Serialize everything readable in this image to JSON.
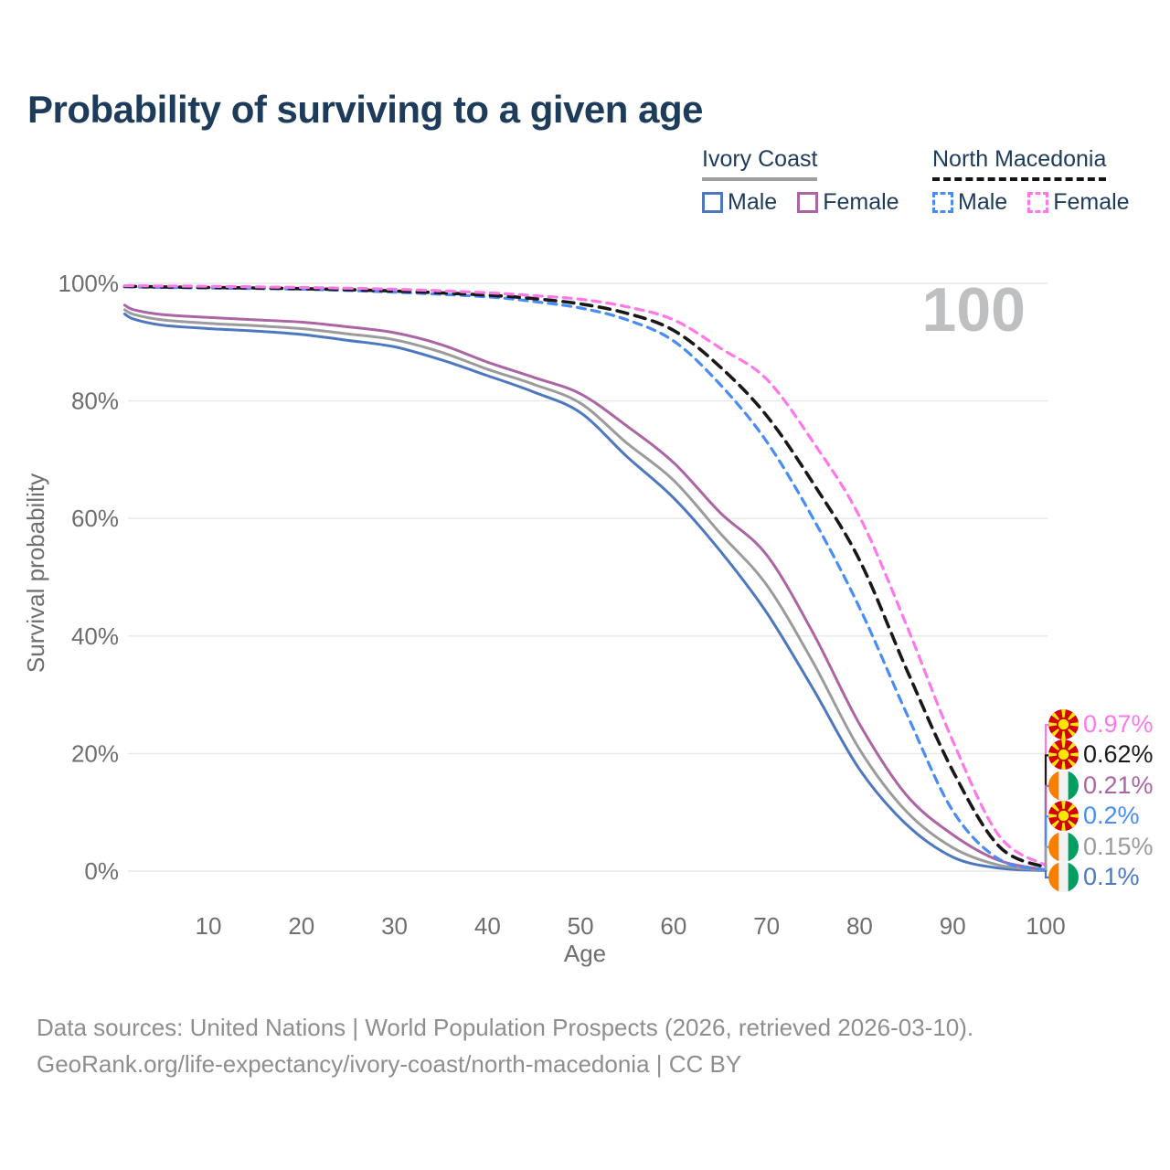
{
  "title": "Probability of surviving to a given age",
  "watermark": "100",
  "legend": {
    "groups": [
      {
        "name": "Ivory Coast",
        "underline_style": "solid",
        "underline_color": "#9e9e9e",
        "items": [
          {
            "label": "Male",
            "color": "#4d78c0",
            "dashed": false
          },
          {
            "label": "Female",
            "color": "#ab64a4",
            "dashed": false
          }
        ]
      },
      {
        "name": "North Macedonia",
        "underline_style": "dashed",
        "underline_color": "#151515",
        "items": [
          {
            "label": "Male",
            "color": "#4a8cf5",
            "dashed": true
          },
          {
            "label": "Female",
            "color": "#ff78e8",
            "dashed": true
          }
        ]
      }
    ]
  },
  "chart_data": {
    "type": "line",
    "title": "Probability of surviving to a given age",
    "xlabel": "Age",
    "ylabel": "Survival probability",
    "xlim": [
      1,
      100
    ],
    "ylim": [
      0,
      100
    ],
    "grid": "horizontal-only",
    "grid_color": "#e7e7e7",
    "tick_color": "#6e6e6e",
    "x_ticks": [
      10,
      20,
      30,
      40,
      50,
      60,
      70,
      80,
      90,
      100
    ],
    "y_ticks": [
      {
        "label": "0%",
        "value": 0
      },
      {
        "label": "20%",
        "value": 20
      },
      {
        "label": "40%",
        "value": 40
      },
      {
        "label": "60%",
        "value": 60
      },
      {
        "label": "80%",
        "value": 80
      },
      {
        "label": "100%",
        "value": 100
      }
    ],
    "age_counter": "100",
    "series": [
      {
        "id": "ivory-coast-male",
        "name": "Ivory Coast Male",
        "color": "#4d78c0",
        "style": "solid",
        "end_value": "0.1%",
        "points": [
          [
            1,
            94.8
          ],
          [
            2,
            93.9
          ],
          [
            5,
            92.9
          ],
          [
            10,
            92.3
          ],
          [
            15,
            91.9
          ],
          [
            20,
            91.3
          ],
          [
            25,
            90.3
          ],
          [
            30,
            89.2
          ],
          [
            35,
            87.0
          ],
          [
            40,
            84.3
          ],
          [
            45,
            81.5
          ],
          [
            50,
            78.0
          ],
          [
            55,
            70.5
          ],
          [
            60,
            63.5
          ],
          [
            65,
            54.5
          ],
          [
            70,
            44.0
          ],
          [
            75,
            31.0
          ],
          [
            80,
            17.3
          ],
          [
            85,
            8.0
          ],
          [
            90,
            2.4
          ],
          [
            95,
            0.5
          ],
          [
            100,
            0.1
          ]
        ]
      },
      {
        "id": "ivory-coast-all",
        "name": "Ivory Coast (both sexes)",
        "color": "#9b9b9b",
        "style": "solid",
        "end_value": "0.15%",
        "points": [
          [
            1,
            95.5
          ],
          [
            2,
            94.7
          ],
          [
            5,
            93.8
          ],
          [
            10,
            93.2
          ],
          [
            15,
            92.8
          ],
          [
            20,
            92.3
          ],
          [
            25,
            91.4
          ],
          [
            30,
            90.4
          ],
          [
            35,
            88.3
          ],
          [
            40,
            85.4
          ],
          [
            45,
            82.8
          ],
          [
            50,
            79.6
          ],
          [
            55,
            72.8
          ],
          [
            60,
            66.5
          ],
          [
            65,
            57.5
          ],
          [
            70,
            48.7
          ],
          [
            75,
            35.5
          ],
          [
            80,
            20.7
          ],
          [
            85,
            10.2
          ],
          [
            90,
            4.0
          ],
          [
            95,
            1.0
          ],
          [
            100,
            0.15
          ]
        ]
      },
      {
        "id": "ivory-coast-female",
        "name": "Ivory Coast Female",
        "color": "#ab64a4",
        "style": "solid",
        "end_value": "0.21%",
        "points": [
          [
            1,
            96.3
          ],
          [
            2,
            95.5
          ],
          [
            5,
            94.7
          ],
          [
            10,
            94.2
          ],
          [
            15,
            93.8
          ],
          [
            20,
            93.4
          ],
          [
            25,
            92.6
          ],
          [
            30,
            91.6
          ],
          [
            35,
            89.6
          ],
          [
            40,
            86.6
          ],
          [
            45,
            84.0
          ],
          [
            50,
            81.2
          ],
          [
            55,
            75.7
          ],
          [
            60,
            69.5
          ],
          [
            65,
            61.0
          ],
          [
            70,
            53.8
          ],
          [
            75,
            40.5
          ],
          [
            80,
            25.0
          ],
          [
            85,
            13.0
          ],
          [
            90,
            6.2
          ],
          [
            95,
            1.8
          ],
          [
            100,
            0.21
          ]
        ]
      },
      {
        "id": "north-macedonia-male",
        "name": "North Macedonia Male",
        "color": "#4a8cf5",
        "style": "dashed",
        "end_value": "0.2%",
        "points": [
          [
            1,
            99.4
          ],
          [
            5,
            99.3
          ],
          [
            10,
            99.2
          ],
          [
            20,
            99.0
          ],
          [
            30,
            98.5
          ],
          [
            40,
            97.7
          ],
          [
            45,
            96.9
          ],
          [
            50,
            95.8
          ],
          [
            55,
            93.8
          ],
          [
            60,
            90.2
          ],
          [
            65,
            82.8
          ],
          [
            70,
            73.1
          ],
          [
            75,
            60.0
          ],
          [
            80,
            44.8
          ],
          [
            85,
            27.0
          ],
          [
            90,
            10.3
          ],
          [
            95,
            2.0
          ],
          [
            100,
            0.2
          ]
        ]
      },
      {
        "id": "north-macedonia-all",
        "name": "North Macedonia (both sexes)",
        "color": "#181818",
        "style": "dashed",
        "end_value": "0.62%",
        "points": [
          [
            1,
            99.5
          ],
          [
            5,
            99.4
          ],
          [
            10,
            99.3
          ],
          [
            20,
            99.1
          ],
          [
            30,
            98.7
          ],
          [
            40,
            98.0
          ],
          [
            45,
            97.4
          ],
          [
            50,
            96.5
          ],
          [
            55,
            94.9
          ],
          [
            60,
            92.0
          ],
          [
            65,
            85.8
          ],
          [
            70,
            77.5
          ],
          [
            75,
            66.0
          ],
          [
            80,
            52.9
          ],
          [
            85,
            34.5
          ],
          [
            90,
            17.1
          ],
          [
            95,
            4.2
          ],
          [
            100,
            0.62
          ]
        ]
      },
      {
        "id": "north-macedonia-female",
        "name": "North Macedonia Female",
        "color": "#ff78e8",
        "style": "dashed",
        "end_value": "0.97%",
        "points": [
          [
            1,
            99.6
          ],
          [
            5,
            99.55
          ],
          [
            10,
            99.5
          ],
          [
            20,
            99.3
          ],
          [
            30,
            99.0
          ],
          [
            40,
            98.4
          ],
          [
            45,
            97.9
          ],
          [
            50,
            97.3
          ],
          [
            55,
            96.0
          ],
          [
            60,
            93.8
          ],
          [
            65,
            89.0
          ],
          [
            70,
            83.7
          ],
          [
            75,
            73.0
          ],
          [
            80,
            60.3
          ],
          [
            85,
            42.0
          ],
          [
            90,
            22.2
          ],
          [
            95,
            6.0
          ],
          [
            100,
            0.97
          ]
        ]
      }
    ]
  },
  "end_labels": [
    {
      "series": "north-macedonia-female",
      "value": "0.97%",
      "color": "#ff78e8",
      "flag": "north-macedonia"
    },
    {
      "series": "north-macedonia-all",
      "value": "0.62%",
      "color": "#1a1a1a",
      "flag": "north-macedonia"
    },
    {
      "series": "ivory-coast-female",
      "value": "0.21%",
      "color": "#ab64a4",
      "flag": "ivory-coast"
    },
    {
      "series": "north-macedonia-male",
      "value": "0.2%",
      "color": "#4a8cf5",
      "flag": "north-macedonia"
    },
    {
      "series": "ivory-coast-all",
      "value": "0.15%",
      "color": "#9b9b9b",
      "flag": "ivory-coast"
    },
    {
      "series": "ivory-coast-male",
      "value": "0.1%",
      "color": "#4d78c0",
      "flag": "ivory-coast"
    }
  ],
  "flags": {
    "north-macedonia": {
      "red": "#d20000",
      "yellow": "#ffe600"
    },
    "ivory-coast": {
      "orange": "#f77f00",
      "white": "#f2f2f2",
      "green": "#009e60"
    }
  },
  "footer": {
    "line1": "Data sources: United Nations | World Population Prospects (2026, retrieved 2026-03-10).",
    "line2": "GeoRank.org/life-expectancy/ivory-coast/north-macedonia | CC BY"
  }
}
